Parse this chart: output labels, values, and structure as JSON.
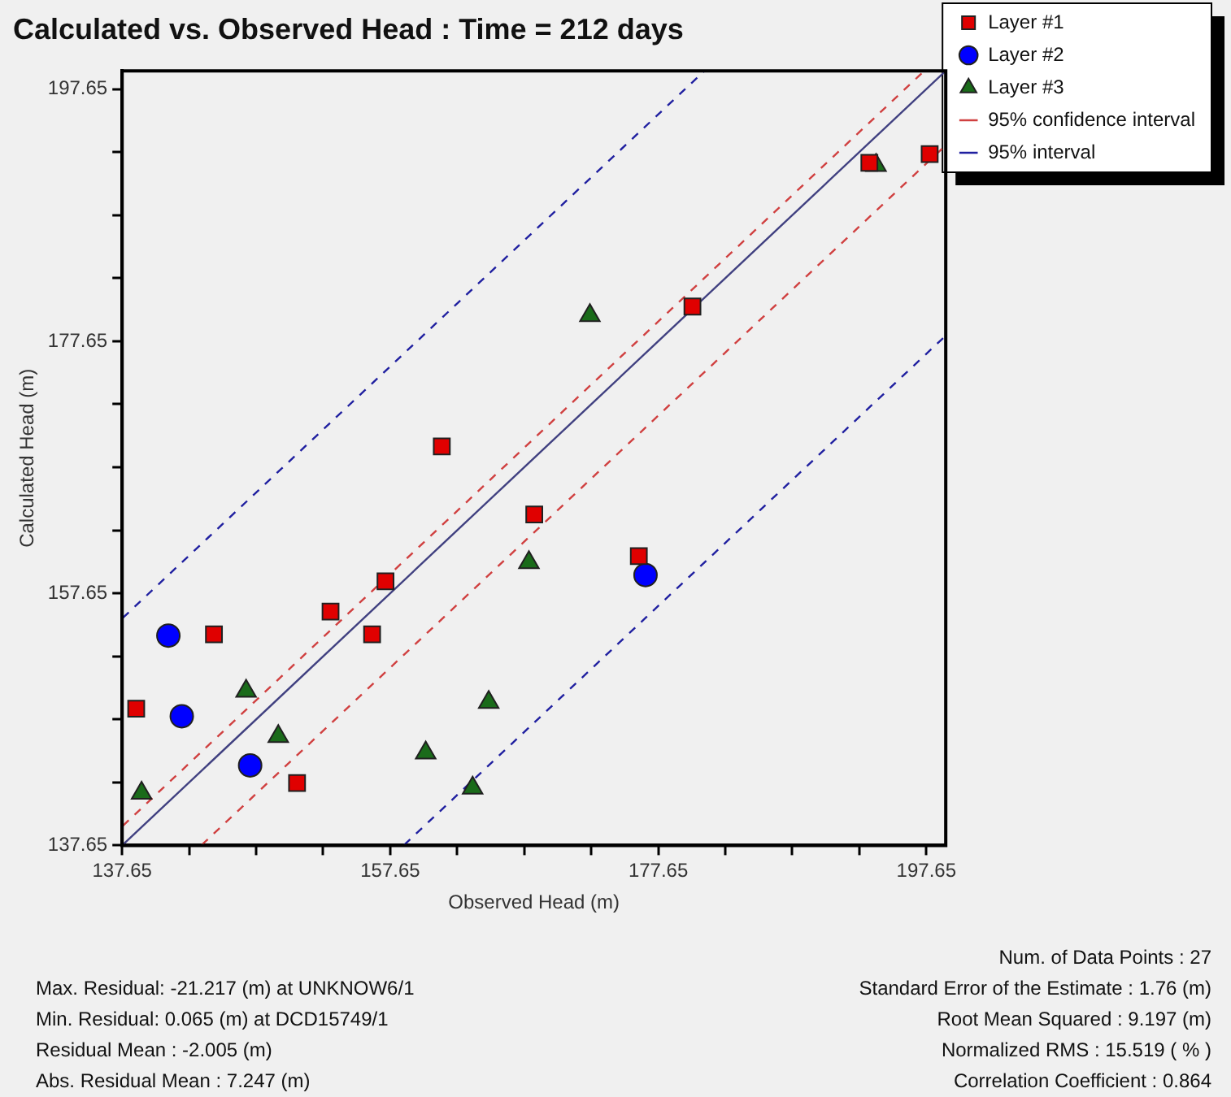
{
  "chart_data": {
    "type": "scatter",
    "title": "Calculated vs. Observed Head : Time = 212 days",
    "xlabel": "Observed Head (m)",
    "ylabel": "Calculated Head (m)",
    "xlim": [
      137.65,
      199.1
    ],
    "ylim": [
      137.65,
      199.1
    ],
    "xticks": [
      137.65,
      {
        "value": 142.65,
        "label": null
      },
      {
        "value": 147.65,
        "label": null
      },
      {
        "value": 152.65,
        "label": null
      },
      157.65,
      {
        "value": 162.65,
        "label": null
      },
      {
        "value": 167.65,
        "label": null
      },
      {
        "value": 172.65,
        "label": null
      },
      177.65,
      {
        "value": 182.65,
        "label": null
      },
      {
        "value": 187.65,
        "label": null
      },
      {
        "value": 192.65,
        "label": null
      },
      197.65
    ],
    "yticks": [
      137.65,
      {
        "value": 142.65,
        "label": null
      },
      {
        "value": 147.65,
        "label": null
      },
      {
        "value": 152.65,
        "label": null
      },
      157.65,
      {
        "value": 162.65,
        "label": null
      },
      {
        "value": 167.65,
        "label": null
      },
      {
        "value": 172.65,
        "label": null
      },
      177.65,
      {
        "value": 182.65,
        "label": null
      },
      {
        "value": 187.65,
        "label": null
      },
      {
        "value": 192.65,
        "label": null
      },
      197.65
    ],
    "grid": false,
    "legend": "top right",
    "series": [
      {
        "name": "Layer #1",
        "color": "#e00000",
        "marker": "square",
        "x": [
          138.7,
          144.5,
          150.7,
          153.2,
          156.3,
          157.3,
          161.5,
          168.4,
          176.2,
          180.2,
          193.4,
          197.9
        ],
        "values": [
          148.5,
          154.4,
          142.6,
          156.2,
          154.4,
          158.6,
          169.3,
          163.9,
          160.6,
          180.4,
          191.8,
          192.5
        ]
      },
      {
        "name": "Layer #2",
        "color": "#0000ff",
        "marker": "circle",
        "x": [
          141.1,
          142.1,
          147.2,
          176.7
        ],
        "values": [
          154.3,
          147.9,
          144.0,
          159.1
        ]
      },
      {
        "name": "Layer #3",
        "color": "#1a6b1a",
        "marker": "triangle",
        "x": [
          139.1,
          146.9,
          149.3,
          160.3,
          165.0,
          163.8,
          168.0,
          172.55,
          193.9
        ],
        "values": [
          141.8,
          149.9,
          146.3,
          145.0,
          149.0,
          142.2,
          160.1,
          179.7,
          191.6
        ]
      },
      {
        "name": "95% confidence interval",
        "type": "line",
        "color": "#d04040",
        "line_style": "dashed",
        "marker": "none",
        "x": [
          137.7,
          197.5
        ],
        "values": [
          139.2,
          199.1
        ]
      },
      {
        "type": "line",
        "color": "#d04040",
        "line_style": "dashed",
        "marker": "none",
        "x": [
          143.6,
          199.1
        ],
        "values": [
          137.7,
          193.2
        ]
      },
      {
        "name": "95% interval",
        "type": "line",
        "color": "#2020a0",
        "line_style": "dashed",
        "marker": "none",
        "x": [
          137.7,
          181.1
        ],
        "values": [
          155.7,
          199.1
        ]
      },
      {
        "type": "line",
        "color": "#2020a0",
        "line_style": "dashed",
        "marker": "none",
        "x": [
          158.7,
          199.1
        ],
        "values": [
          137.7,
          178.1
        ]
      },
      {
        "type": "line",
        "color": "#404080",
        "line_style": "solid",
        "marker": "none",
        "x": [
          137.7,
          199.1
        ],
        "values": [
          137.7,
          199.1
        ]
      }
    ],
    "annotations": [
      "Max. Residual: -21.217 (m) at UNKNOW6/1",
      "Min. Residual: 0.065 (m) at DCD15749/1",
      "Residual Mean : -2.005 (m)",
      "Abs. Residual Mean : 7.247 (m)",
      "Num. of Data Points : 27",
      "Standard Error of the Estimate : 1.76 (m)",
      "Root Mean Squared : 9.197 (m)",
      "Normalized RMS : 15.519 ( % )",
      "Correlation Coefficient : 0.864"
    ]
  }
}
